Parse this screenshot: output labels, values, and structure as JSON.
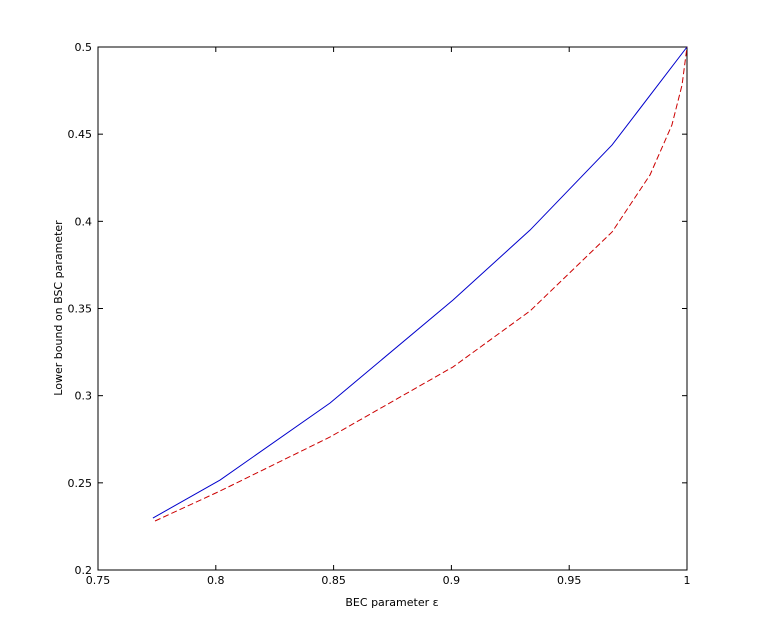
{
  "chart_data": {
    "type": "line",
    "xlabel": "BEC parameter ε",
    "ylabel": "Lower bound on BSC parameter",
    "xlim": [
      0.75,
      1
    ],
    "xticks": [
      0.75,
      0.8,
      0.85,
      0.9,
      0.95,
      1
    ],
    "ylim": [
      0.2,
      0.5
    ],
    "yticks": [
      0.2,
      0.25,
      0.3,
      0.35,
      0.4,
      0.45,
      0.5
    ],
    "series": [
      {
        "color": "#0000cc",
        "dash": "solid",
        "x": [
          0.7733,
          0.8018,
          0.8485,
          0.9007,
          0.9334,
          0.9682,
          1
        ],
        "values": [
          0.2298,
          0.2516,
          0.2958,
          0.3549,
          0.395,
          0.4438,
          0.5
        ]
      },
      {
        "color": "#cc0000",
        "dash": "dashed",
        "x": [
          0.7742,
          0.8018,
          0.8485,
          0.9007,
          0.9334,
          0.9682,
          0.9843,
          0.9936,
          0.9979,
          1
        ],
        "values": [
          0.2281,
          0.2453,
          0.2763,
          0.3165,
          0.3486,
          0.3939,
          0.4266,
          0.4553,
          0.4782,
          0.5
        ]
      }
    ]
  }
}
